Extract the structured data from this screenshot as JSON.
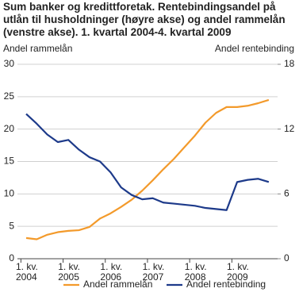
{
  "chart_data": {
    "type": "line",
    "title": "Sum banker og kredittforetak. Rentebindingsandel på utlån til husholdninger (høyre akse) og andel rammelån (venstre akse). 1. kvartal 2004-4. kvartal 2009",
    "y_label": "Andel rammelån",
    "y2_label": "Andel rentebinding",
    "categories": [
      "1. kv.\n2004",
      null,
      null,
      null,
      "1. kv.\n2005",
      null,
      null,
      null,
      "1. kv.\n2006",
      null,
      null,
      null,
      "1. kv.\n2007",
      null,
      null,
      null,
      "1. kv.\n2008",
      null,
      null,
      null,
      "1. kv.\n2009",
      null,
      null,
      null
    ],
    "ylim": [
      0,
      30
    ],
    "yticks": [
      0,
      5,
      10,
      15,
      20,
      25,
      30
    ],
    "y2lim": [
      0,
      18
    ],
    "y2ticks": [
      0,
      6,
      12,
      18
    ],
    "grid": true,
    "legend": "bottom",
    "series": [
      {
        "name": "Andel rammelån",
        "color": "#f39a2b",
        "values": [
          3.2,
          3.0,
          3.7,
          4.1,
          4.3,
          4.4,
          4.9,
          6.2,
          7.0,
          8.0,
          9.1,
          10.5,
          12.1,
          13.8,
          15.4,
          17.2,
          19.0,
          21.0,
          22.5,
          23.4,
          23.4,
          23.6,
          24.0,
          24.5
        ]
      },
      {
        "name": "Andel rentebinding",
        "color": "#1d3a8a",
        "axis": "y2",
        "values": [
          13.4,
          12.5,
          11.5,
          10.8,
          11.0,
          10.1,
          9.4,
          9.0,
          8.0,
          6.6,
          5.9,
          5.5,
          5.6,
          5.2,
          5.1,
          5.0,
          4.9,
          4.7,
          4.6,
          4.5,
          7.1,
          7.3,
          7.4,
          7.1
        ]
      }
    ]
  }
}
